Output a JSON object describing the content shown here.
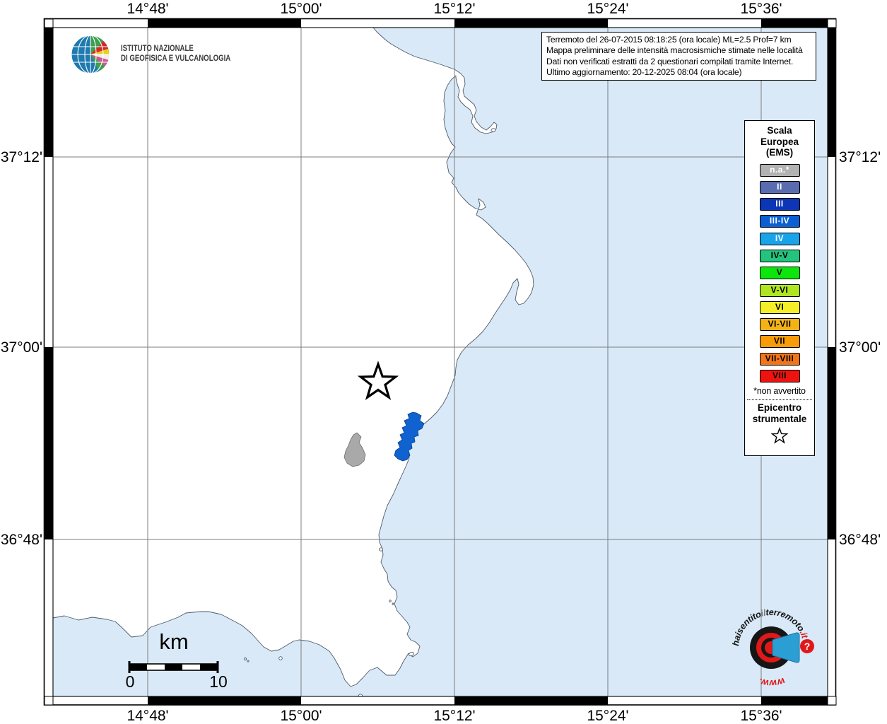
{
  "axes": {
    "lon": [
      "14°48'",
      "15°00'",
      "15°12'",
      "15°24'",
      "15°36'"
    ],
    "lat": [
      "37°12'",
      "37°00'",
      "36°48'"
    ]
  },
  "info_box": {
    "lines": [
      "Terremoto del 26-07-2015 08:18:25 (ora locale) ML=2.5 Prof=7 km",
      "Mappa preliminare delle intensità macrosismiche stimate nelle località",
      "Dati non verificati estratti da 2 questionari compilati tramite Internet.",
      "Ultimo aggiornamento: 20-12-2025 08:04 (ora locale)"
    ]
  },
  "ingv_logo": {
    "line1": "ISTITUTO NAZIONALE",
    "line2": "DI GEOFISICA E VULCANOLOGIA"
  },
  "legend": {
    "title_lines": [
      "Scala",
      "Europea",
      "(EMS)"
    ],
    "items": [
      {
        "label": "n.a.*",
        "color": "#b2b2b2",
        "text": "#ffffff"
      },
      {
        "label": "II",
        "color": "#5a6cb0",
        "text": "#ffffff"
      },
      {
        "label": "III",
        "color": "#0c36b6",
        "text": "#ffffff"
      },
      {
        "label": "III-IV",
        "color": "#0a60d2",
        "text": "#ffffff"
      },
      {
        "label": "IV",
        "color": "#19a4ea",
        "text": "#ffffff"
      },
      {
        "label": "IV-V",
        "color": "#24c37e",
        "text": "#000000"
      },
      {
        "label": "V",
        "color": "#0ce60c",
        "text": "#000000"
      },
      {
        "label": "V-VI",
        "color": "#b0e521",
        "text": "#000000"
      },
      {
        "label": "VI",
        "color": "#f6ef28",
        "text": "#000000"
      },
      {
        "label": "VI-VII",
        "color": "#f3b216",
        "text": "#000000"
      },
      {
        "label": "VII",
        "color": "#f89b09",
        "text": "#000000"
      },
      {
        "label": "VII-VIII",
        "color": "#f1761b",
        "text": "#000000"
      },
      {
        "label": "VIII",
        "color": "#ed1410",
        "text": "#000000"
      }
    ],
    "footnote": "*non avvertito",
    "epicenter_label_lines": [
      "Epicentro",
      "strumentale"
    ]
  },
  "scale_bar": {
    "unit": "km",
    "min": "0",
    "max": "10"
  },
  "site_logo": {
    "name_start": "haisentito",
    "name_mid": "il",
    "name_main": "terremoto",
    "name_tld": ".it",
    "www": "www.",
    "question_mark": "?"
  },
  "colors": {
    "sea": "#d9e9f7",
    "land": "#ffffff",
    "coast": "#4e5a66",
    "grid": "#7d7d7d",
    "reported_city": "#0f62cf",
    "na_city": "#a9a9a9"
  }
}
